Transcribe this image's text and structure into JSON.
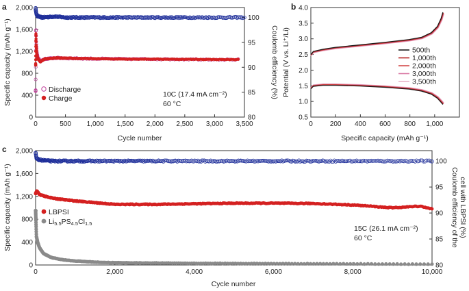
{
  "colors": {
    "charge": "#d42020",
    "discharge": "#c0409a",
    "ce": "#1f2f9a",
    "cell2": "#8a8a8a"
  },
  "chart_data": [
    {
      "panel": "a",
      "type": "scatter",
      "xlabel": "Cycle number",
      "ylabel": "Specific capacity (mAh g⁻¹)",
      "y2label": "Coulomb efficiency (%)",
      "xlim": [
        0,
        3500
      ],
      "ylim": [
        0,
        2000
      ],
      "y2lim": [
        80,
        102
      ],
      "xticks": [
        "0",
        "500",
        "1,000",
        "1,500",
        "2,000",
        "2,500",
        "3,000",
        "3,500"
      ],
      "yticks": [
        "0",
        "400",
        "800",
        "1,200",
        "1,600",
        "2,000"
      ],
      "y2ticks": [
        "80",
        "85",
        "90",
        "95",
        "100"
      ],
      "legend": [
        "Discharge",
        "Charge"
      ],
      "annotation": [
        "10C (17.4 mA cm⁻²)",
        "60 °C"
      ],
      "series": [
        {
          "name": "Discharge",
          "x": [
            1,
            5,
            10,
            20,
            40,
            80,
            150,
            250,
            330,
            500,
            1000,
            1500,
            2000,
            2500,
            3000,
            3300
          ],
          "y": [
            480,
            1650,
            1350,
            1180,
            1080,
            1020,
            1060,
            1070,
            1080,
            1075,
            1065,
            1060,
            1058,
            1055,
            1052,
            1050
          ]
        },
        {
          "name": "Charge",
          "x": [
            1,
            5,
            10,
            20,
            40,
            80,
            150,
            250,
            330,
            500,
            1000,
            1500,
            2000,
            2500,
            3000,
            3300
          ],
          "y": [
            950,
            1550,
            1300,
            1150,
            1060,
            1010,
            1060,
            1070,
            1080,
            1075,
            1065,
            1060,
            1058,
            1055,
            1052,
            1050
          ]
        },
        {
          "name": "Coulomb efficiency",
          "axis": "y2",
          "x": [
            1,
            10,
            30,
            100,
            330,
            500,
            1000,
            1500,
            2000,
            2500,
            3000,
            3300,
            3500
          ],
          "y": [
            101.8,
            100.8,
            100.3,
            100.0,
            100.2,
            100.0,
            100.0,
            100.0,
            100.0,
            100.0,
            100.0,
            100.0,
            100.0
          ]
        }
      ]
    },
    {
      "panel": "b",
      "type": "line",
      "xlabel": "Specific capacity (mAh g⁻¹)",
      "ylabel": "Potential (V vs. Li⁺/Li)",
      "xlim": [
        0,
        1200
      ],
      "ylim": [
        0.5,
        4.0
      ],
      "xticks": [
        "0",
        "200",
        "400",
        "600",
        "800",
        "1,000"
      ],
      "yticks": [
        "0.5",
        "1.0",
        "1.5",
        "2.0",
        "2.5",
        "3.0",
        "3.5",
        "4.0"
      ],
      "legend": [
        "500th",
        "1,000th",
        "2,000th",
        "3,000th",
        "3,500th"
      ],
      "legend_colors": [
        "#1a1a1a",
        "#b52020",
        "#d44a4a",
        "#d979a3",
        "#e8b4c8"
      ],
      "charge_curve": {
        "x": [
          0,
          20,
          100,
          200,
          400,
          600,
          800,
          900,
          980,
          1030,
          1060,
          1075
        ],
        "y": [
          2.45,
          2.55,
          2.62,
          2.68,
          2.76,
          2.84,
          2.93,
          3.0,
          3.15,
          3.35,
          3.6,
          3.8
        ]
      },
      "discharge_curve": {
        "x": [
          0,
          20,
          100,
          200,
          400,
          600,
          800,
          900,
          980,
          1030,
          1060,
          1075
        ],
        "y": [
          1.45,
          1.53,
          1.56,
          1.56,
          1.54,
          1.5,
          1.44,
          1.38,
          1.28,
          1.15,
          1.02,
          0.95
        ]
      }
    },
    {
      "panel": "c",
      "type": "scatter",
      "xlabel": "Cycle number",
      "ylabel": "Specific capacity (mAh g⁻¹)",
      "y2label": [
        "Coulomb efficiency of the",
        "cell with LBPSI (%)"
      ],
      "xlim": [
        0,
        10000
      ],
      "ylim": [
        0,
        2000
      ],
      "y2lim": [
        80,
        102
      ],
      "xticks": [
        "0",
        "2,000",
        "4,000",
        "6,000",
        "8,000",
        "10,000"
      ],
      "yticks": [
        "0",
        "400",
        "800",
        "1,200",
        "1,600",
        "2,000"
      ],
      "y2ticks": [
        "80",
        "85",
        "90",
        "95",
        "100"
      ],
      "legend": [
        "LBPSI",
        "Li5.5PS4.5Cl1.5"
      ],
      "annotation": [
        "15C (26.1 mA cm⁻²)",
        "60 °C"
      ],
      "series": [
        {
          "name": "LBPSI",
          "x": [
            1,
            30,
            100,
            300,
            500,
            1000,
            2000,
            3000,
            4000,
            5000,
            6000,
            7000,
            8000,
            9000,
            9500,
            9700,
            10000
          ],
          "y": [
            1250,
            1300,
            1230,
            1190,
            1160,
            1120,
            1060,
            1060,
            1070,
            1080,
            1080,
            1075,
            1050,
            1000,
            1020,
            1030,
            980
          ]
        },
        {
          "name": "Li5.5PS4.5Cl1.5",
          "x": [
            1,
            20,
            50,
            100,
            200,
            400,
            700,
            1000,
            1500,
            2000,
            4000,
            6000,
            8000,
            10000
          ],
          "y": [
            950,
            500,
            400,
            300,
            200,
            130,
            90,
            70,
            50,
            40,
            30,
            25,
            20,
            15
          ]
        },
        {
          "name": "Coulomb efficiency",
          "axis": "y2",
          "x": [
            1,
            20,
            100,
            400,
            1000,
            2000,
            4000,
            6000,
            8000,
            10000
          ],
          "y": [
            101.5,
            100.5,
            100.2,
            100.0,
            100.0,
            100.0,
            100.0,
            100.0,
            100.0,
            100.0
          ]
        }
      ]
    }
  ]
}
